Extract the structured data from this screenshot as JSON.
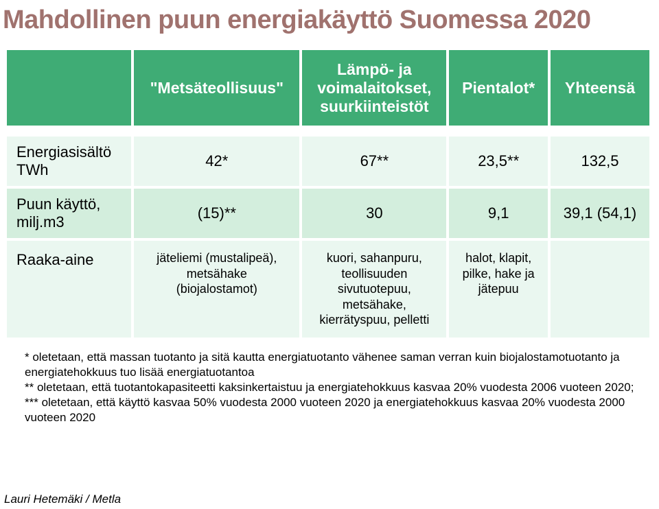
{
  "title": "Mahdollinen puun energiakäyttö Suomessa 2020",
  "colors": {
    "title": "#a0726e",
    "header_bg": "#3fac75",
    "header_text": "#ffffff",
    "row_odd_bg": "#eaf7f0",
    "row_even_bg": "#d3eedd",
    "page_bg": "#ffffff"
  },
  "table": {
    "headers": {
      "col0": "",
      "col1": "\"Metsäteollisuus\"",
      "col2": "Lämpö- ja\nvoimalaitokset,\nsuurkiinteistöt",
      "col3": "Pientalot*",
      "col4": "Yhteensä"
    },
    "rows": {
      "r1": {
        "label": "Energiasisältö\nTWh",
        "c1": "42*",
        "c2": "67**",
        "c3": "23,5**",
        "c4": "132,5"
      },
      "r2": {
        "label": "Puun käyttö,\nmilj.m3",
        "c1": "(15)**",
        "c2": "30",
        "c3": "9,1",
        "c4": "39,1 (54,1)"
      },
      "r3": {
        "label": "Raaka-aine",
        "c1": "jäteliemi (mustalipeä),\nmetsähake\n(biojalostamot)",
        "c2": "kuori, sahanpuru,\nteollisuuden\nsivutuotepuu,\nmetsähake,\nkierrätyspuu, pelletti",
        "c3": "halot, klapit,\npilke, hake ja\njätepuu",
        "c4": ""
      }
    }
  },
  "footnotes": {
    "f1": "* oletetaan, että massan tuotanto ja sitä kautta energiatuotanto vähenee saman verran kuin biojalostamotuotanto ja energiatehokkuus tuo lisää  energiatuotantoa",
    "f2": "** oletetaan, että tuotantokapasiteetti kaksinkertaistuu ja energiatehokkuus kasvaa 20% vuodesta 2006 vuoteen 2020;",
    "f3": "*** oletetaan, että käyttö kasvaa 50% vuodesta 2000 vuoteen 2020 ja energiatehokkuus kasvaa 20% vuodesta 2000 vuoteen 2020"
  },
  "credit": "Lauri Hetemäki / Metla"
}
